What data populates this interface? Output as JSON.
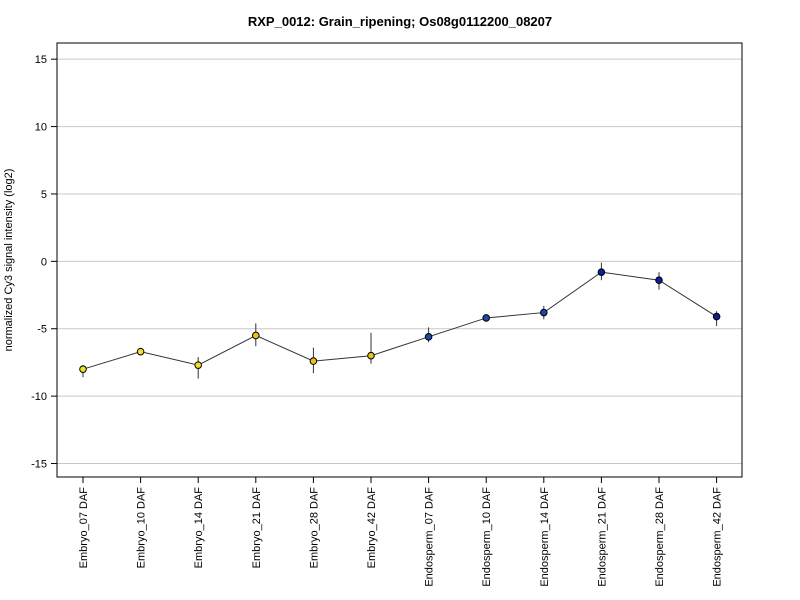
{
  "chart_data": {
    "type": "line",
    "title": "RXP_0012: Grain_ripening; Os08g0112200_08207",
    "xlabel": "",
    "ylabel": "normalized Cy3 signal intensity (log2)",
    "ylim": [
      -16,
      16.2
    ],
    "yticks": [
      -15,
      -10,
      -5,
      0,
      5,
      10,
      15
    ],
    "grid": true,
    "categories": [
      "Embryo_07 DAF",
      "Embryo_10 DAF",
      "Embryo_14 DAF",
      "Embryo_21 DAF",
      "Embryo_28 DAF",
      "Embryo_42 DAF",
      "Endosperm_07 DAF",
      "Endosperm_10 DAF",
      "Endosperm_14 DAF",
      "Endosperm_21 DAF",
      "Endosperm_28 DAF",
      "Endosperm_42 DAF"
    ],
    "values": [
      -8.0,
      -6.7,
      -7.7,
      -5.5,
      -7.4,
      -7.0,
      -5.6,
      -4.2,
      -3.8,
      -0.8,
      -1.4,
      -4.1
    ],
    "error_low": [
      -8.6,
      -6.8,
      -8.7,
      -6.3,
      -8.3,
      -7.6,
      -6.0,
      -4.4,
      -4.3,
      -1.4,
      -2.1,
      -4.8
    ],
    "error_high": [
      -7.7,
      -6.6,
      -7.1,
      -4.6,
      -6.4,
      -5.3,
      -4.9,
      -4.0,
      -3.3,
      -0.1,
      -0.8,
      -3.7
    ],
    "point_colors": [
      "#f2e027",
      "#f2e027",
      "#f2e027",
      "#e8c21a",
      "#e8c21a",
      "#e8c21a",
      "#1c49a8",
      "#1c49a8",
      "#1c49a8",
      "#0b1f96",
      "#0b1f96",
      "#0b1f96"
    ],
    "line_color": "#333333",
    "grid_color": "#c8c8c8"
  }
}
